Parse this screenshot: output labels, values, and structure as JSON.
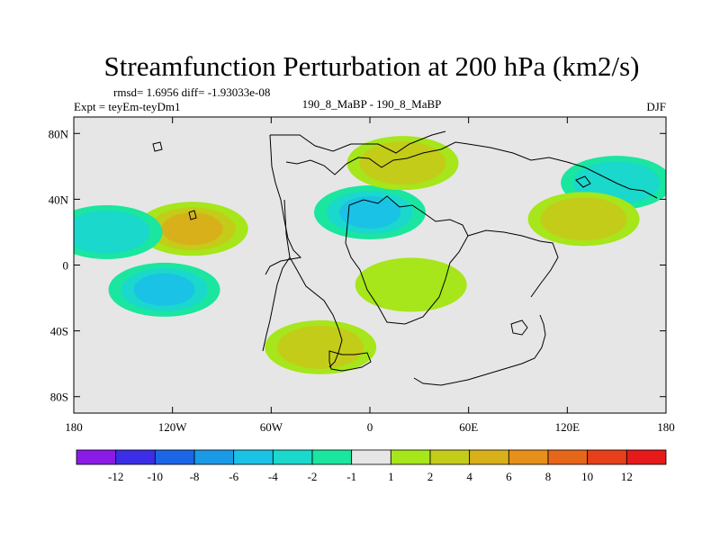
{
  "chart_data": {
    "type": "heatmap",
    "title": "Streamfunction Perturbation at 200 hPa (km2/s)",
    "subtitle_stats": "rmsd= 1.6956 diff= -1.93033e-08",
    "subtitle_left": "Expt = teyEm-teyDm1",
    "subtitle_center": "190_8_MaBP - 190_8_MaBP",
    "subtitle_right": "DJF",
    "xlim": [
      -180,
      180
    ],
    "ylim": [
      -90,
      90
    ],
    "x_ticks": [
      {
        "value": -180,
        "label": "180"
      },
      {
        "value": -120,
        "label": "120W"
      },
      {
        "value": -60,
        "label": "60W"
      },
      {
        "value": 0,
        "label": "0"
      },
      {
        "value": 60,
        "label": "60E"
      },
      {
        "value": 120,
        "label": "120E"
      },
      {
        "value": 180,
        "label": "180"
      }
    ],
    "y_ticks": [
      {
        "value": 80,
        "label": "80N"
      },
      {
        "value": 40,
        "label": "40N"
      },
      {
        "value": 0,
        "label": "0"
      },
      {
        "value": -40,
        "label": "40S"
      },
      {
        "value": -80,
        "label": "80S"
      }
    ],
    "colorbar": {
      "colors": [
        "#8a1ae6",
        "#3b2ee6",
        "#1a66e6",
        "#1a99e6",
        "#1ac2e6",
        "#1ad8cc",
        "#1ae6a0",
        "#e6e6e6",
        "#a6e61a",
        "#c4cc1a",
        "#d8b01a",
        "#e68f1a",
        "#e6661a",
        "#e6401a",
        "#e61a1a"
      ],
      "labels": [
        "-12",
        "-10",
        "-8",
        "-6",
        "-4",
        "-2",
        "-1",
        "1",
        "2",
        "4",
        "6",
        "8",
        "10",
        "12"
      ]
    },
    "field_features": [
      {
        "lon": 0,
        "lat": 32,
        "value": -5,
        "note": "negative center over North Africa / Mediterranean"
      },
      {
        "lon": -108,
        "lat": 22,
        "value": 5,
        "note": "positive center east Pacific"
      },
      {
        "lon": -125,
        "lat": -15,
        "value": -5,
        "note": "negative center south Pacific"
      },
      {
        "lon": -160,
        "lat": 20,
        "value": -3,
        "note": "negative center central Pacific"
      },
      {
        "lon": 20,
        "lat": 62,
        "value": 3,
        "note": "positive ridge northern Eurasia"
      },
      {
        "lon": 25,
        "lat": -12,
        "value": 2,
        "note": "positive over southern Africa / Indian Ocean"
      },
      {
        "lon": 150,
        "lat": 50,
        "value": -3,
        "note": "negative NE Asia / N Pacific"
      },
      {
        "lon": -30,
        "lat": -50,
        "value": 3,
        "note": "positive south Atlantic"
      },
      {
        "lon": 130,
        "lat": 28,
        "value": 3,
        "note": "positive east Asia"
      }
    ]
  }
}
